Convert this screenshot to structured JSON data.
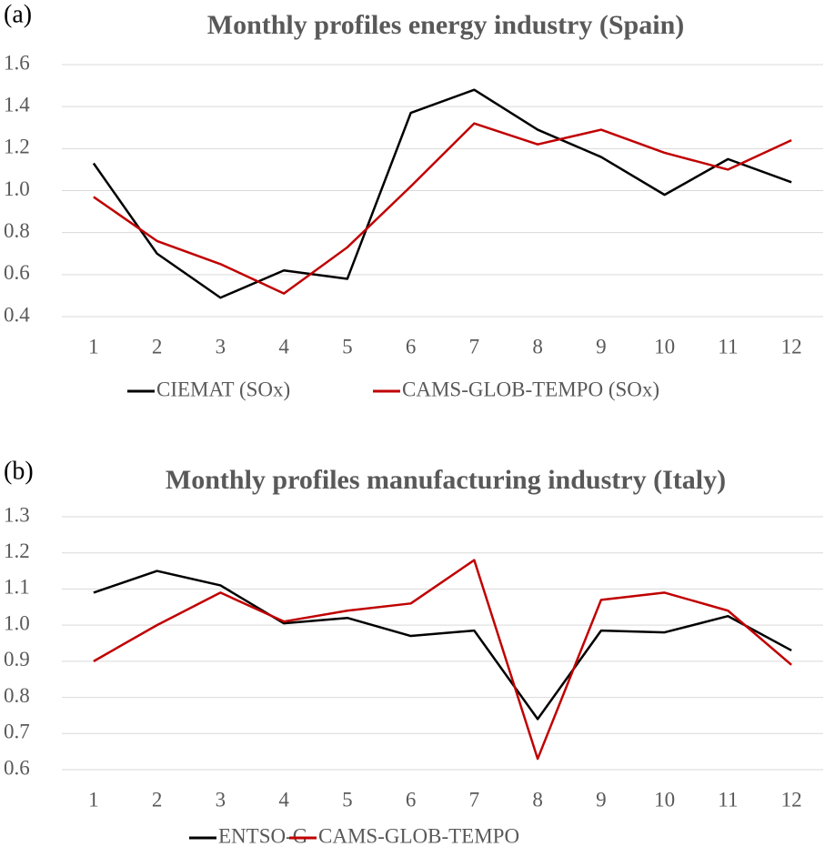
{
  "chart_data": [
    {
      "type": "line",
      "panel_label": "(a)",
      "title": "Monthly profiles energy industry (Spain)",
      "categories": [
        "1",
        "2",
        "3",
        "4",
        "5",
        "6",
        "7",
        "8",
        "9",
        "10",
        "11",
        "12"
      ],
      "series": [
        {
          "name": "CIEMAT (SOx)",
          "color": "#000000",
          "values": [
            1.13,
            0.7,
            0.49,
            0.62,
            0.58,
            1.37,
            1.48,
            1.29,
            1.16,
            0.98,
            1.15,
            1.04
          ]
        },
        {
          "name": "CAMS-GLOB-TEMPO (SOx)",
          "color": "#c00000",
          "values": [
            0.97,
            0.76,
            0.65,
            0.51,
            0.73,
            1.02,
            1.32,
            1.22,
            1.29,
            1.18,
            1.1,
            1.24
          ]
        }
      ],
      "ylim": [
        0.4,
        1.6
      ],
      "yticks": [
        0.4,
        0.6,
        0.8,
        {
          "value": 1.0,
          "label": "1.0"
        },
        1.2,
        1.4,
        1.6
      ],
      "grid": true,
      "legend": "bottom"
    },
    {
      "type": "line",
      "panel_label": "(b)",
      "title": "Monthly profiles manufacturing industry (Italy)",
      "categories": [
        "1",
        "2",
        "3",
        "4",
        "5",
        "6",
        "7",
        "8",
        "9",
        "10",
        "11",
        "12"
      ],
      "series": [
        {
          "name": "ENTSO-G",
          "color": "#000000",
          "values": [
            1.09,
            1.15,
            1.11,
            1.005,
            1.02,
            0.97,
            0.985,
            0.74,
            0.985,
            0.98,
            1.025,
            0.93
          ]
        },
        {
          "name": "CAMS-GLOB-TEMPO",
          "color": "#c00000",
          "values": [
            0.9,
            1.0,
            1.09,
            1.01,
            1.04,
            1.06,
            1.18,
            0.63,
            1.07,
            1.09,
            1.04,
            0.89
          ]
        }
      ],
      "ylim": [
        0.6,
        1.3
      ],
      "yticks": [
        0.6,
        0.7,
        0.8,
        0.9,
        {
          "value": 1.0,
          "label": "1.0"
        },
        1.1,
        1.2,
        1.3
      ],
      "grid": true,
      "legend": "bottom"
    }
  ]
}
